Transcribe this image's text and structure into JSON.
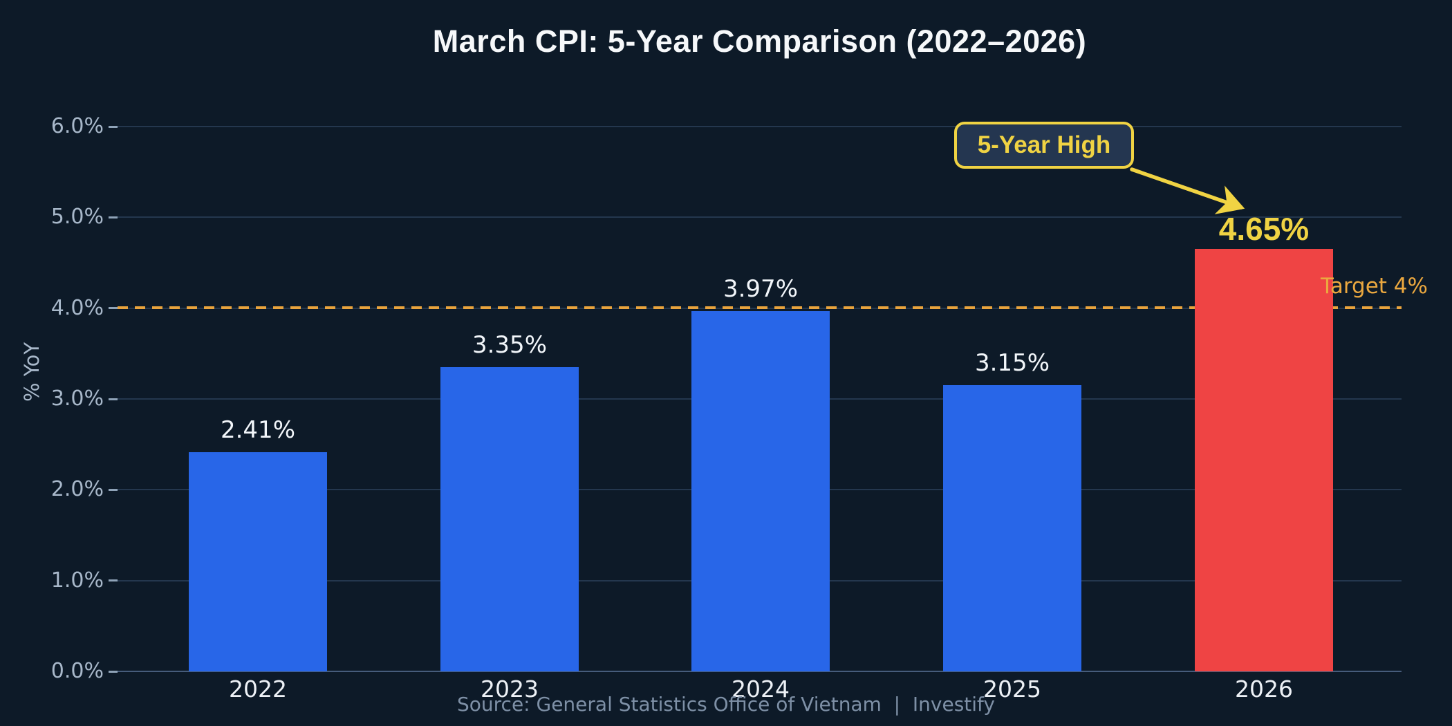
{
  "chart_data": {
    "type": "bar",
    "title": "March CPI: 5-Year Comparison (2022–2026)",
    "ylabel": "% YoY",
    "xlabel": "",
    "categories": [
      "2022",
      "2023",
      "2024",
      "2025",
      "2026"
    ],
    "values": [
      2.41,
      3.35,
      3.97,
      3.15,
      4.65
    ],
    "value_labels": [
      "2.41%",
      "3.35%",
      "3.97%",
      "3.15%",
      "4.65%"
    ],
    "ylim": [
      0,
      6
    ],
    "yticks": [
      0,
      1,
      2,
      3,
      4,
      5,
      6
    ],
    "ytick_labels": [
      "0.0%",
      "1.0%",
      "2.0%",
      "3.0%",
      "4.0%",
      "5.0%",
      "6.0%"
    ],
    "grid": true,
    "legend_position": "none",
    "highlight_index": 4,
    "colors": {
      "background": "#0d1a28",
      "bar_default": "#2866e8",
      "bar_highlight": "#ef4444",
      "value_label": "#f2f6fa",
      "highlight_label": "#f0d343",
      "axis_text": "#a8b8ca",
      "target_orange": "#e8a33d",
      "annotation_yellow": "#f0d343"
    },
    "target_line": {
      "value": 4.0,
      "label": "Target 4%",
      "color": "#e8a33d",
      "style": "dashed"
    },
    "annotation": {
      "text": "5-Year High",
      "points_to_value_label": "4.65%",
      "points_to_category": "2026"
    }
  },
  "footer": {
    "source": "Source: General Statistics Office of Vietnam  |  Investify"
  }
}
